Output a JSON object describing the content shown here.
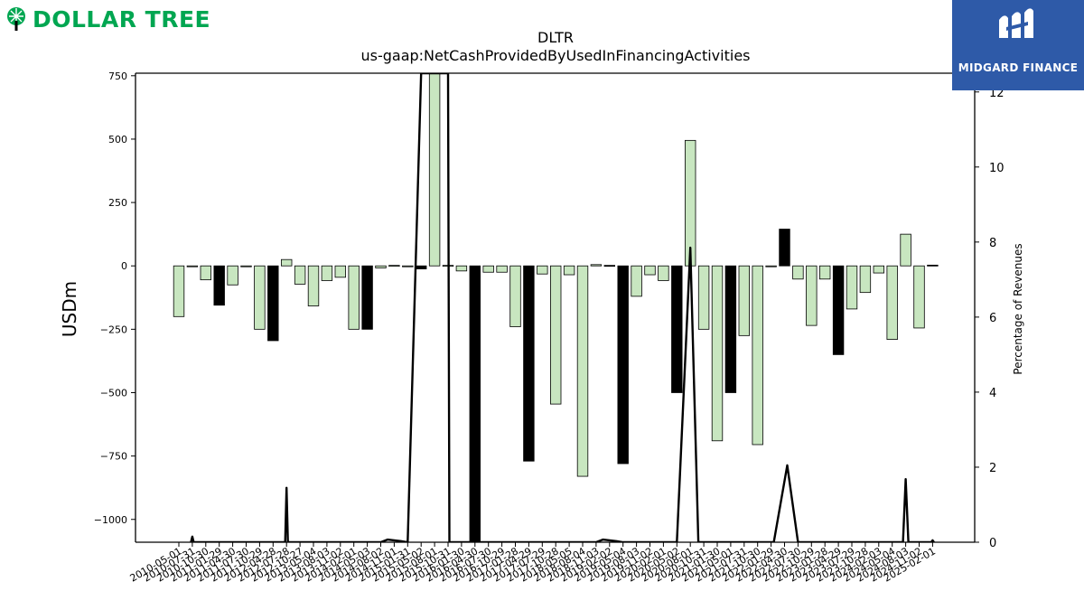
{
  "header": {
    "brand_name": "DOLLAR TREE",
    "brand_color": "#00a651",
    "brand_icon": "tree-icon",
    "partner_name": "MIDGARD FINANCE",
    "partner_color": "#2e5aa8",
    "partner_icon": "midgard-logo-icon"
  },
  "chart_data": {
    "type": "bar",
    "title": "DLTR",
    "subtitle": "us-gaap:NetCashProvidedByUsedInFinancingActivities",
    "ylabel": "USDm",
    "y2label": "Percentage of Revenues",
    "ylim": [
      -1090,
      760
    ],
    "y2lim": [
      0,
      12.5
    ],
    "yticks": [
      750,
      500,
      250,
      0,
      -250,
      -500,
      -750,
      -1000
    ],
    "yticks_label": [
      "750",
      "500",
      "250",
      "0",
      "−250",
      "−500",
      "−750",
      "−1000"
    ],
    "y2ticks": [
      0,
      2,
      4,
      6,
      8,
      10,
      12
    ],
    "grid": false,
    "bar_colors": {
      "quarterly": "#c8e6c0",
      "annual": "#000000"
    },
    "bar_outline": "#000000",
    "line_color": "#000000",
    "xtick_labels": [
      "2010-05-01",
      "2010-07-31",
      "2010-10-30",
      "2011-01-29",
      "2011-04-30",
      "2011-07-30",
      "2011-10-29",
      "2012-04-28",
      "2012-07-28",
      "2012-10-27",
      "2013-05-04",
      "2013-08-03",
      "2013-11-02",
      "2014-02-01",
      "2014-05-03",
      "2014-08-02",
      "2014-11-01",
      "2015-01-31",
      "2015-05-02",
      "2015-08-01",
      "2015-10-31",
      "2016-01-30",
      "2016-04-30",
      "2016-07-30",
      "2016-10-29",
      "2017-01-28",
      "2017-04-29",
      "2017-07-29",
      "2017-10-28",
      "2018-05-05",
      "2018-08-04",
      "2018-11-03",
      "2019-02-02",
      "2019-05-04",
      "2019-08-03",
      "2019-11-02",
      "2020-02-01",
      "2020-05-02",
      "2020-08-01",
      "2020-10-31",
      "2021-01-30",
      "2021-05-01",
      "2021-07-31",
      "2021-10-30",
      "2022-01-29",
      "2022-04-30",
      "2022-07-30",
      "2022-10-29",
      "2023-01-28",
      "2023-04-29",
      "2023-07-29",
      "2023-10-28",
      "2024-02-03",
      "2024-05-04",
      "2024-08-03",
      "2024-11-02",
      "2025-02-01"
    ],
    "bars": [
      {
        "value": -200,
        "annual": false
      },
      {
        "value": 0,
        "annual": false
      },
      {
        "value": -55,
        "annual": false
      },
      {
        "value": -155,
        "annual": true
      },
      {
        "value": -75,
        "annual": false
      },
      {
        "value": -2,
        "annual": false
      },
      {
        "value": -250,
        "annual": false
      },
      {
        "value": -295,
        "annual": true
      },
      {
        "value": 25,
        "annual": false
      },
      {
        "value": -72,
        "annual": false
      },
      {
        "value": -158,
        "annual": false
      },
      {
        "value": -58,
        "annual": false
      },
      {
        "value": -45,
        "annual": false
      },
      {
        "value": -250,
        "annual": false
      },
      {
        "value": -250,
        "annual": true
      },
      {
        "value": -8,
        "annual": false
      },
      {
        "value": 2,
        "annual": false
      },
      {
        "value": 0,
        "annual": false
      },
      {
        "value": -12,
        "annual": true
      },
      {
        "value": 760,
        "annual": false
      },
      {
        "value": 2,
        "annual": false
      },
      {
        "value": -20,
        "annual": false
      },
      {
        "value": -1090,
        "annual": true
      },
      {
        "value": -25,
        "annual": false
      },
      {
        "value": -25,
        "annual": false
      },
      {
        "value": -240,
        "annual": false
      },
      {
        "value": -770,
        "annual": true
      },
      {
        "value": -32,
        "annual": false
      },
      {
        "value": -545,
        "annual": false
      },
      {
        "value": -35,
        "annual": false
      },
      {
        "value": -830,
        "annual": false
      },
      {
        "value": 5,
        "annual": false
      },
      {
        "value": 2,
        "annual": true
      },
      {
        "value": -780,
        "annual": true
      },
      {
        "value": -120,
        "annual": false
      },
      {
        "value": -35,
        "annual": false
      },
      {
        "value": -58,
        "annual": false
      },
      {
        "value": -500,
        "annual": true
      },
      {
        "value": 495,
        "annual": false
      },
      {
        "value": -250,
        "annual": false
      },
      {
        "value": -690,
        "annual": false
      },
      {
        "value": -500,
        "annual": true
      },
      {
        "value": -275,
        "annual": false
      },
      {
        "value": -705,
        "annual": false
      },
      {
        "value": 0,
        "annual": false
      },
      {
        "value": 145,
        "annual": true
      },
      {
        "value": -52,
        "annual": false
      },
      {
        "value": -235,
        "annual": false
      },
      {
        "value": -52,
        "annual": false
      },
      {
        "value": -350,
        "annual": true
      },
      {
        "value": -170,
        "annual": false
      },
      {
        "value": -105,
        "annual": false
      },
      {
        "value": -28,
        "annual": false
      },
      {
        "value": -290,
        "annual": false
      },
      {
        "value": 125,
        "annual": false
      },
      {
        "value": -245,
        "annual": false
      },
      {
        "value": 3,
        "annual": true
      }
    ],
    "pct_line": [
      {
        "i": 0.9,
        "v": 0
      },
      {
        "i": 1.0,
        "v": 0.15
      },
      {
        "i": 1.1,
        "v": 0
      },
      {
        "i": 7.9,
        "v": 0
      },
      {
        "i": 8.0,
        "v": 1.45
      },
      {
        "i": 8.1,
        "v": 0
      },
      {
        "i": 15.0,
        "v": 0
      },
      {
        "i": 15.5,
        "v": 0.07
      },
      {
        "i": 16.5,
        "v": 0.03
      },
      {
        "i": 17.0,
        "v": 0
      },
      {
        "i": 18.0,
        "v": 12.5
      },
      {
        "i": 20.0,
        "v": 12.5
      },
      {
        "i": 20.1,
        "v": 0
      },
      {
        "i": 31.0,
        "v": 0
      },
      {
        "i": 31.5,
        "v": 0.07
      },
      {
        "i": 32.5,
        "v": 0.03
      },
      {
        "i": 33.0,
        "v": 0
      },
      {
        "i": 37.0,
        "v": 0
      },
      {
        "i": 38.0,
        "v": 7.85
      },
      {
        "i": 38.6,
        "v": 0
      },
      {
        "i": 44.2,
        "v": 0
      },
      {
        "i": 45.2,
        "v": 2.05
      },
      {
        "i": 46.0,
        "v": 0
      },
      {
        "i": 53.8,
        "v": 0
      },
      {
        "i": 54.0,
        "v": 1.68
      },
      {
        "i": 54.2,
        "v": 0
      },
      {
        "i": 55.9,
        "v": 0
      },
      {
        "i": 56.0,
        "v": 0.05
      },
      {
        "i": 56.1,
        "v": 0
      }
    ]
  }
}
